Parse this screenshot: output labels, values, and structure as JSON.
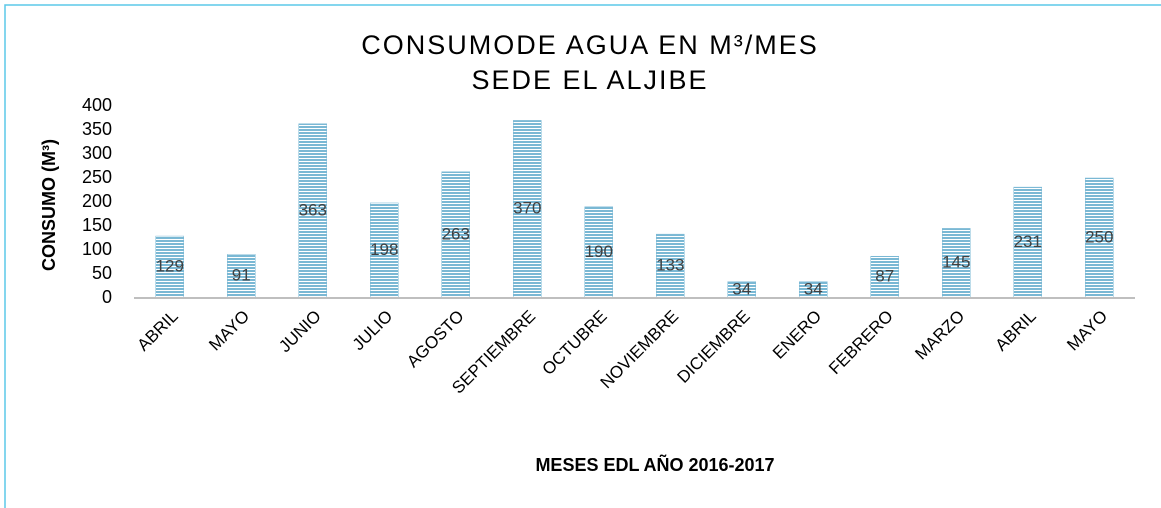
{
  "chart_data": {
    "type": "bar",
    "title": "CONSUMODE AGUA EN M³/MES",
    "subtitle": "SEDE EL ALJIBE",
    "x_label": "MESES EDL AÑO 2016-2017",
    "y_label": "CONSUMO (M³)",
    "categories": [
      "ABRIL",
      "MAYO",
      "JUNIO",
      "JULIO",
      "AGOSTO",
      "SEPTIEMBRE",
      "OCTUBRE",
      "NOVIEMBRE",
      "DICIEMBRE",
      "ENERO",
      "FEBRERO",
      "MARZO",
      "ABRIL",
      "MAYO"
    ],
    "values": [
      129,
      91,
      363,
      198,
      263,
      370,
      190,
      133,
      34,
      34,
      87,
      145,
      231,
      250
    ],
    "color": "#7ab8d4",
    "ylim": [
      0,
      400
    ],
    "yticks": [
      0,
      50,
      100,
      150,
      200,
      250,
      300,
      350,
      400
    ],
    "grid": false
  }
}
